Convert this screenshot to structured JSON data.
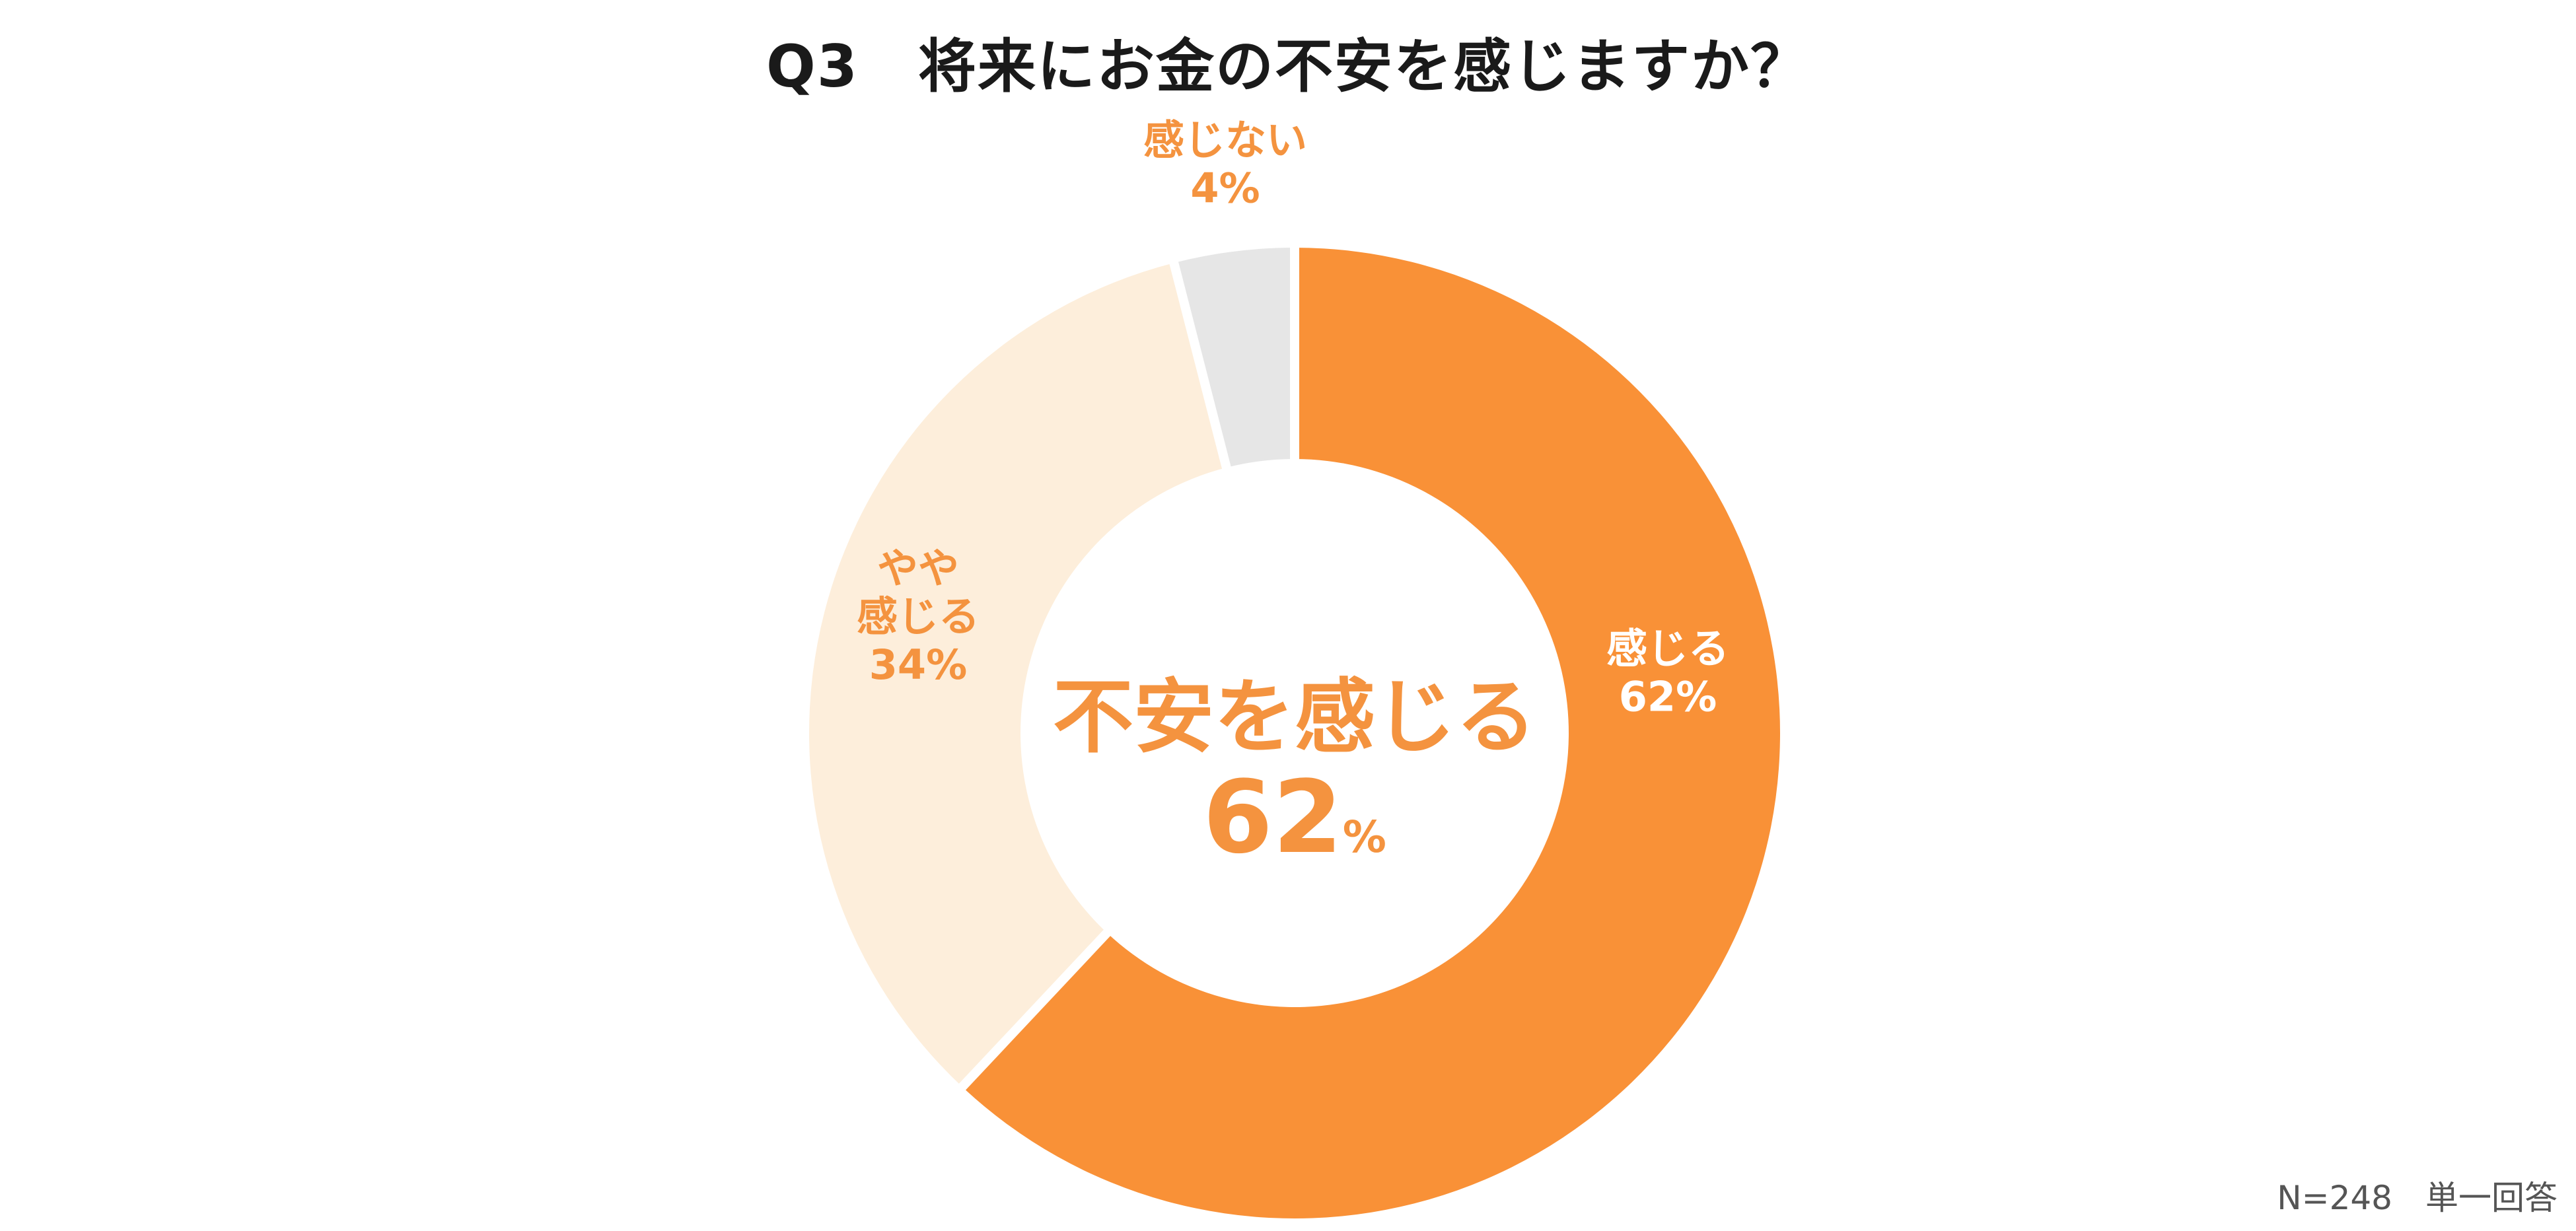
{
  "colors": {
    "strong": "#f99137",
    "somewhat": "#fdeedb",
    "none": "#e6e6e6",
    "label_orange": "#f4933f",
    "label_white": "#ffffff",
    "title": "#1a1a1a"
  },
  "chart_data": {
    "type": "pie",
    "variant": "donut",
    "title": "Q3　将来にお金の不安を感じますか？",
    "categories": [
      "感じる",
      "やや感じる",
      "感じない"
    ],
    "values": [
      62,
      34,
      4
    ],
    "unit": "%",
    "slice_labels": [
      {
        "lines": [
          "感じる"
        ],
        "value": "62%"
      },
      {
        "lines": [
          "やや",
          "感じる"
        ],
        "value": "34%"
      },
      {
        "lines": [
          "感じない"
        ],
        "value": "4%"
      }
    ],
    "center_label": {
      "text": "不安を感じる",
      "value": "62",
      "unit": "%"
    },
    "note": "N=248　単一回答"
  }
}
